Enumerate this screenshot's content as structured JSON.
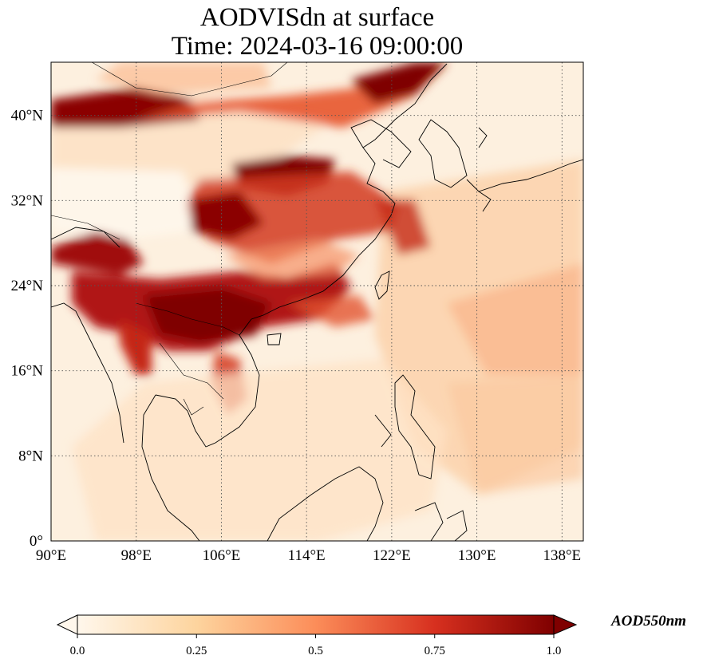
{
  "title": {
    "line1": "AODVISdn at surface",
    "line2": "Time: 2024-03-16 09:00:00"
  },
  "map": {
    "projection": "PlateCarree",
    "lon_range": [
      90,
      140
    ],
    "lat_range": [
      0,
      45
    ],
    "gridlines": "dotted",
    "x_ticks": [
      {
        "lon": 90,
        "label": "90°E"
      },
      {
        "lon": 98,
        "label": "98°E"
      },
      {
        "lon": 106,
        "label": "106°E"
      },
      {
        "lon": 114,
        "label": "114°E"
      },
      {
        "lon": 122,
        "label": "122°E"
      },
      {
        "lon": 130,
        "label": "130°E"
      },
      {
        "lon": 138,
        "label": "138°E"
      }
    ],
    "y_ticks": [
      {
        "lat": 0,
        "label": "0°"
      },
      {
        "lat": 8,
        "label": "8°N"
      },
      {
        "lat": 16,
        "label": "16°N"
      },
      {
        "lat": 24,
        "label": "24°N"
      },
      {
        "lat": 32,
        "label": "32°N"
      },
      {
        "lat": 40,
        "label": "40°N"
      }
    ],
    "field_background": "#fdf0df",
    "high_aod_regions": [
      {
        "name": "inner mongolia band",
        "color": "#7f0000"
      },
      {
        "name": "north china plain",
        "color": "#7f0000"
      },
      {
        "name": "south china",
        "color": "#a50000"
      },
      {
        "name": "indochina north",
        "color": "#8b0000"
      }
    ]
  },
  "colorbar": {
    "colormap": "OrRd",
    "range": [
      0.0,
      1.0
    ],
    "extend": "both",
    "ticks": [
      {
        "value": 0.0,
        "label": "0.0"
      },
      {
        "value": 0.25,
        "label": "0.25"
      },
      {
        "value": 0.5,
        "label": "0.5"
      },
      {
        "value": 0.75,
        "label": "0.75"
      },
      {
        "value": 1.0,
        "label": "1.0"
      }
    ],
    "units_label": "AOD550nm",
    "stops": [
      "#fff7ec",
      "#fdd49e",
      "#fc8d59",
      "#d7301f",
      "#7f0000"
    ]
  }
}
